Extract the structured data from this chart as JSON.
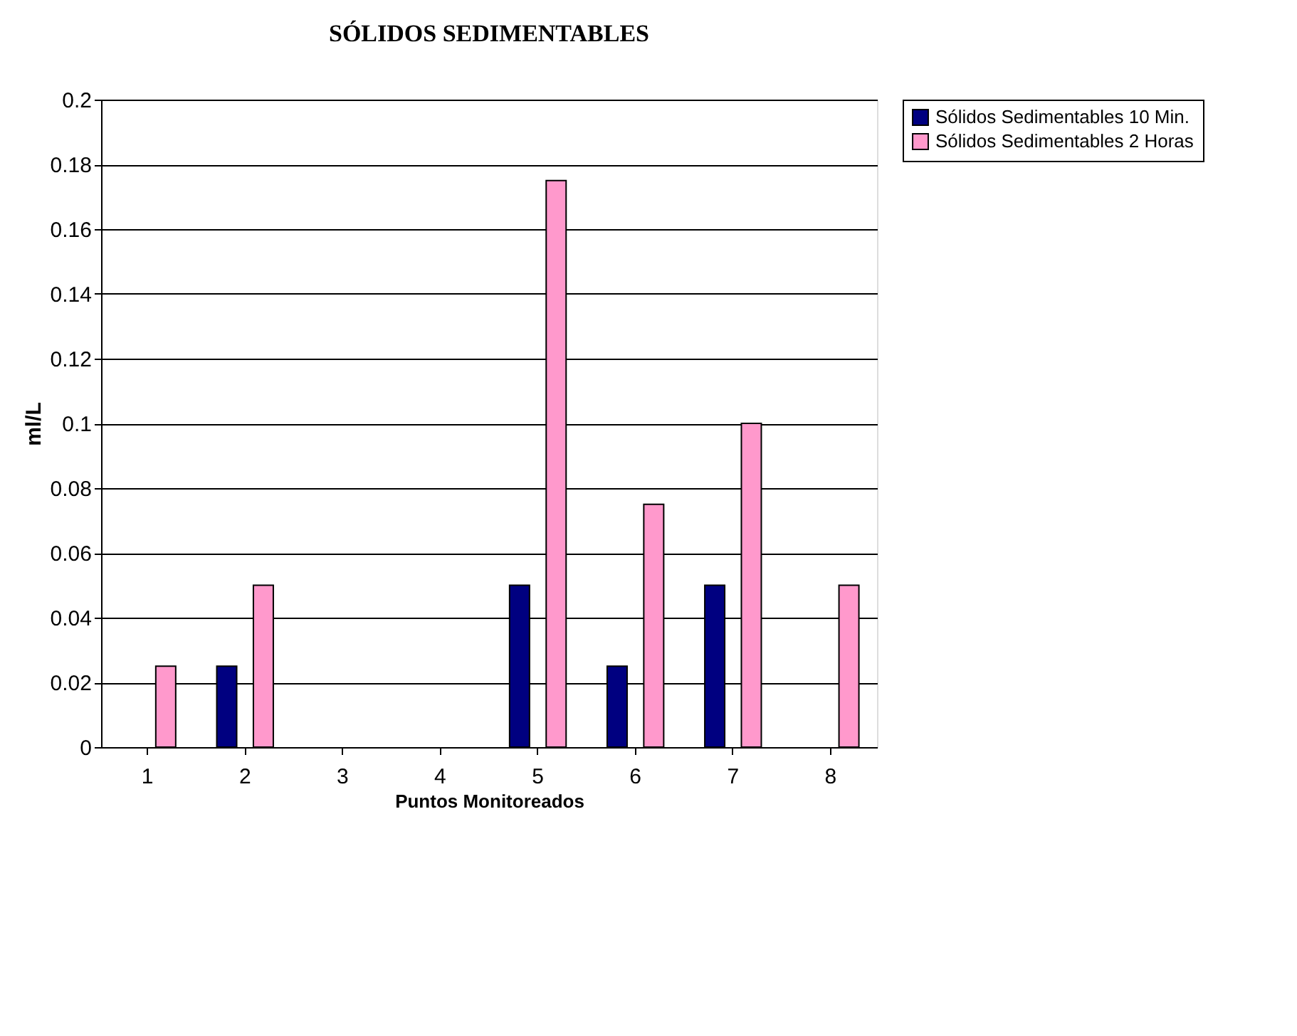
{
  "chart_data": {
    "type": "bar",
    "title": "SÓLIDOS SEDIMENTABLES",
    "xlabel": "Puntos Monitoreados",
    "ylabel": "ml/L",
    "categories": [
      "1",
      "2",
      "3",
      "4",
      "5",
      "6",
      "7",
      "8"
    ],
    "series": [
      {
        "name": "Sólidos Sedimentables 10 Min.",
        "color": "#000080",
        "values": [
          null,
          0.025,
          null,
          null,
          0.05,
          0.025,
          0.05,
          null
        ]
      },
      {
        "name": "Sólidos Sedimentables 2 Horas",
        "color": "#ff99cc",
        "values": [
          0.025,
          0.05,
          null,
          null,
          0.175,
          0.075,
          0.1,
          0.05
        ]
      }
    ],
    "ylim": [
      0,
      0.2
    ],
    "yticks": [
      0,
      0.02,
      0.04,
      0.06,
      0.08,
      0.1,
      0.12,
      0.14,
      0.16,
      0.18,
      0.2
    ],
    "grid": "y",
    "legend": "right"
  }
}
